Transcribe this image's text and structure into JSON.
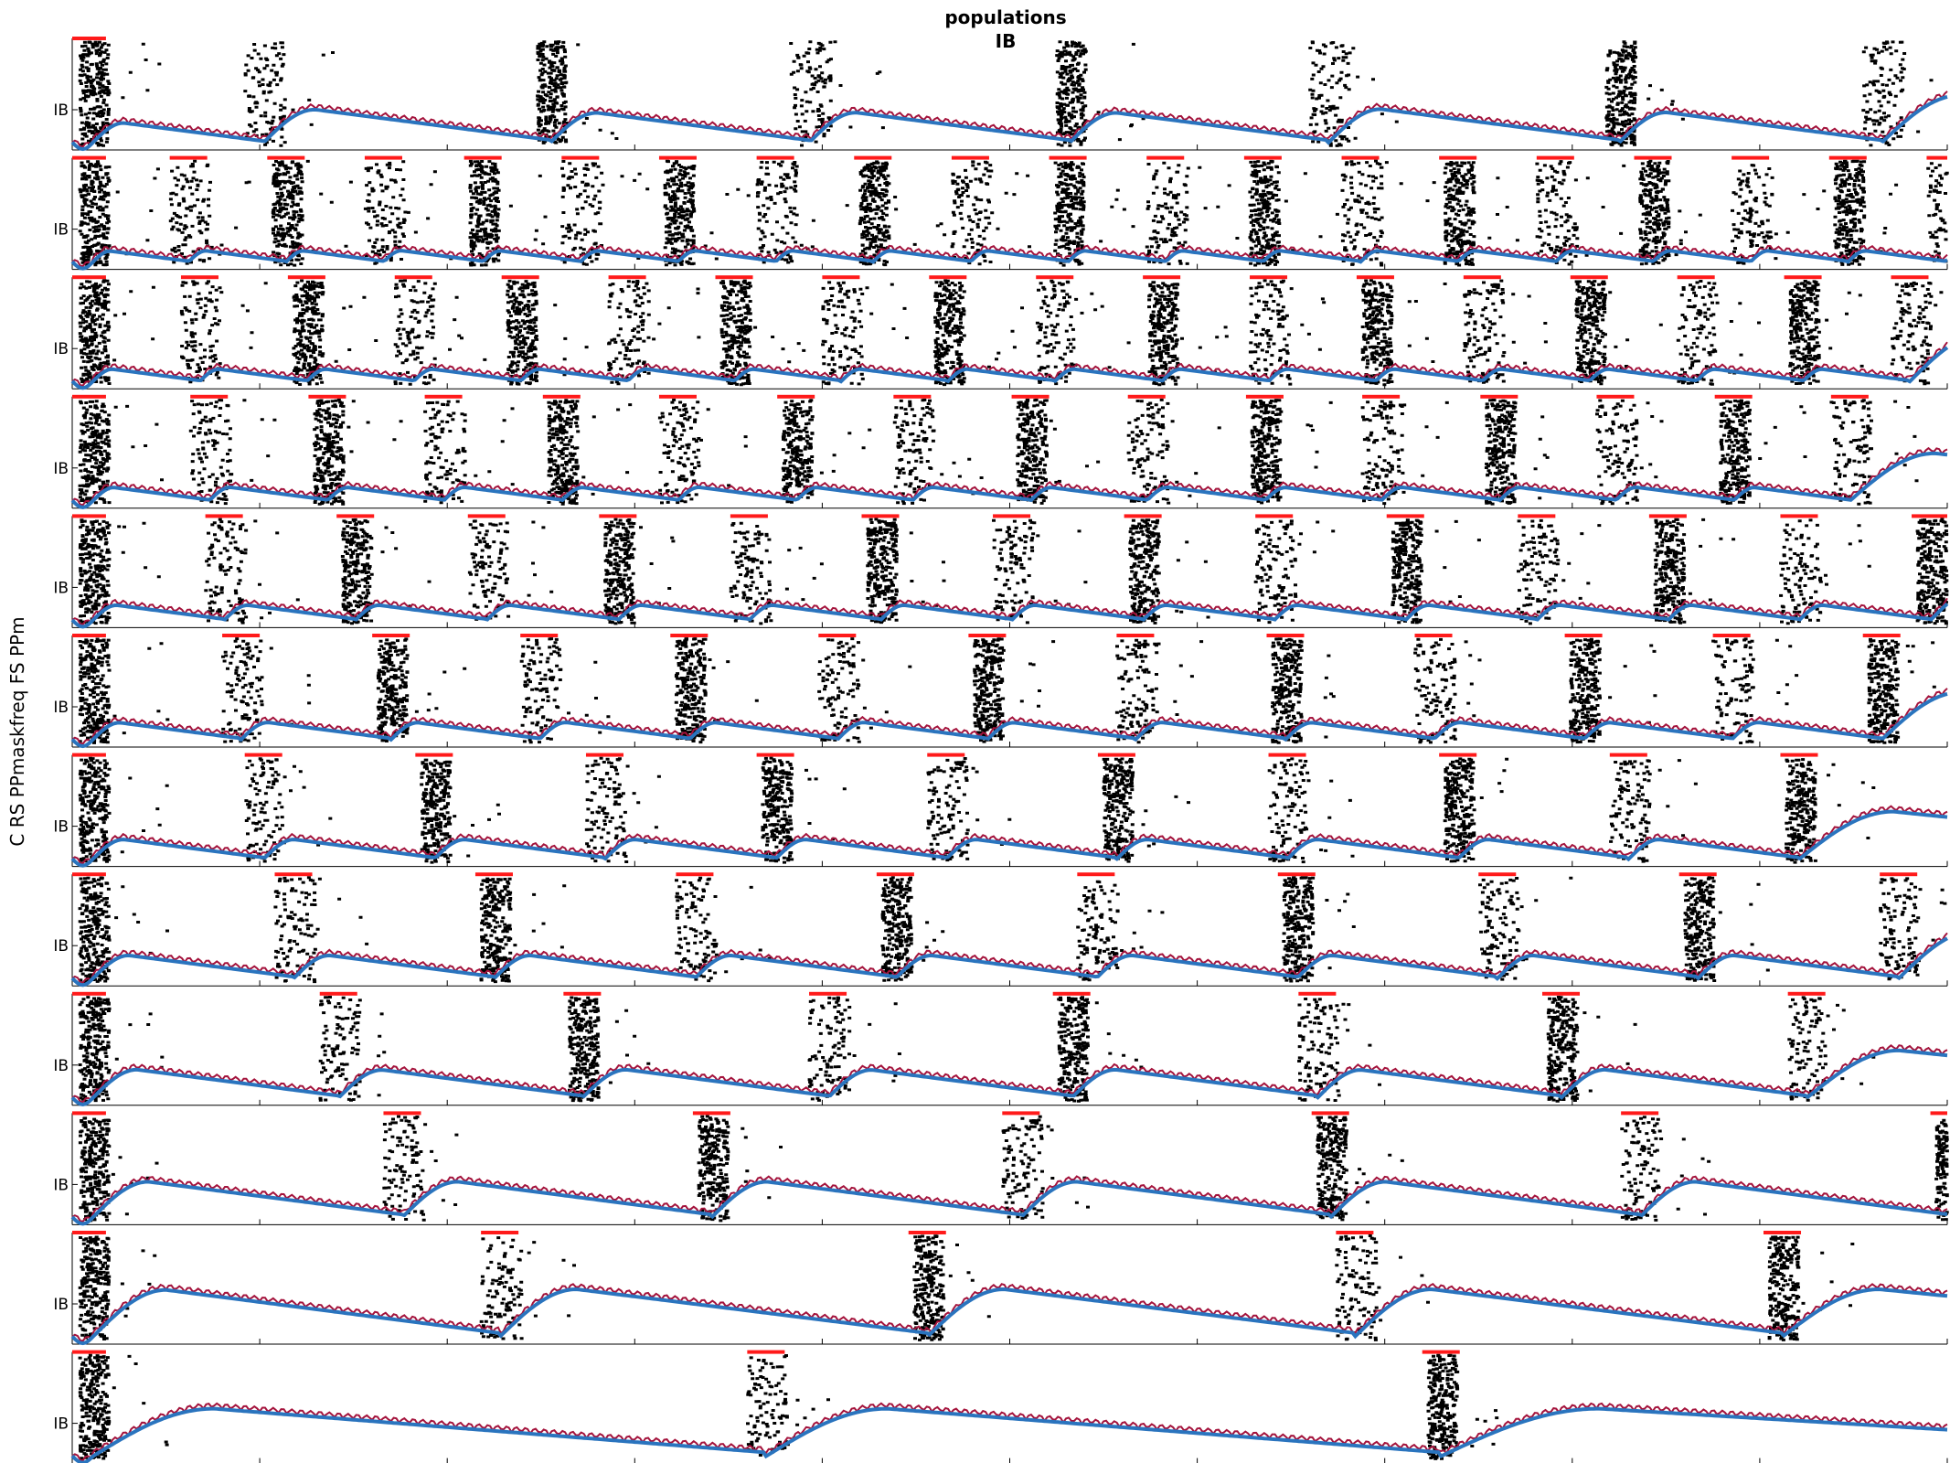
{
  "title_lines": [
    "populations",
    "IB"
  ],
  "side_label": "C RS PPmaskfreq FS PPm",
  "colors": {
    "lfp": "#2a74be",
    "spikes_envelope": "#a4133c",
    "raster": "#000000",
    "mask": "#ff1a1a",
    "axis": "#000000"
  },
  "chart_data": {
    "type": "line",
    "title": "populations IB",
    "panel_label": "IB",
    "x_ticks_per_panel": 10,
    "grid": false,
    "legend": "none",
    "panels": [
      {
        "name": "panel-1",
        "ylabel": "IB",
        "burst_centers": [
          0.011,
          0.102,
          0.255,
          0.393,
          0.532,
          0.67,
          0.825,
          0.965
        ],
        "mask_windows": [
          [
            0.0,
            0.018
          ]
        ]
      },
      {
        "name": "panel-2",
        "ylabel": "IB",
        "burst_centers": [
          0.011,
          0.062,
          0.114,
          0.166,
          0.219,
          0.271,
          0.323,
          0.375,
          0.427,
          0.479,
          0.531,
          0.583,
          0.635,
          0.687,
          0.739,
          0.791,
          0.843,
          0.895,
          0.947,
          0.999
        ],
        "mask_windows": [
          [
            0.0,
            0.018
          ],
          [
            0.052,
            0.072
          ],
          [
            0.104,
            0.124
          ],
          [
            0.156,
            0.176
          ],
          [
            0.209,
            0.229
          ],
          [
            0.261,
            0.281
          ],
          [
            0.313,
            0.333
          ],
          [
            0.365,
            0.385
          ],
          [
            0.417,
            0.437
          ],
          [
            0.469,
            0.489
          ],
          [
            0.521,
            0.541
          ],
          [
            0.573,
            0.593
          ],
          [
            0.625,
            0.645
          ],
          [
            0.677,
            0.697
          ],
          [
            0.729,
            0.749
          ],
          [
            0.781,
            0.801
          ],
          [
            0.833,
            0.853
          ],
          [
            0.885,
            0.905
          ],
          [
            0.937,
            0.957
          ],
          [
            0.989,
            1.0
          ]
        ]
      },
      {
        "name": "panel-3",
        "ylabel": "IB",
        "burst_centers": [
          0.011,
          0.068,
          0.125,
          0.182,
          0.239,
          0.296,
          0.353,
          0.41,
          0.467,
          0.524,
          0.581,
          0.638,
          0.695,
          0.752,
          0.809,
          0.866,
          0.923,
          0.98
        ],
        "mask_windows": [
          [
            0.0,
            0.018
          ],
          [
            0.058,
            0.078
          ],
          [
            0.115,
            0.135
          ],
          [
            0.172,
            0.192
          ],
          [
            0.229,
            0.249
          ],
          [
            0.286,
            0.306
          ],
          [
            0.343,
            0.363
          ],
          [
            0.4,
            0.42
          ],
          [
            0.457,
            0.477
          ],
          [
            0.514,
            0.534
          ],
          [
            0.571,
            0.591
          ],
          [
            0.628,
            0.648
          ],
          [
            0.685,
            0.705
          ],
          [
            0.742,
            0.762
          ],
          [
            0.799,
            0.819
          ],
          [
            0.856,
            0.876
          ],
          [
            0.913,
            0.933
          ],
          [
            0.97,
            0.99
          ]
        ]
      },
      {
        "name": "panel-4",
        "ylabel": "IB",
        "burst_centers": [
          0.011,
          0.073,
          0.136,
          0.198,
          0.261,
          0.323,
          0.386,
          0.448,
          0.511,
          0.573,
          0.636,
          0.698,
          0.761,
          0.823,
          0.886,
          0.948
        ],
        "mask_windows": [
          [
            0.0,
            0.018
          ],
          [
            0.063,
            0.083
          ],
          [
            0.126,
            0.146
          ],
          [
            0.188,
            0.208
          ],
          [
            0.251,
            0.271
          ],
          [
            0.313,
            0.333
          ],
          [
            0.376,
            0.396
          ],
          [
            0.438,
            0.458
          ],
          [
            0.501,
            0.521
          ],
          [
            0.563,
            0.583
          ],
          [
            0.626,
            0.646
          ],
          [
            0.688,
            0.708
          ],
          [
            0.751,
            0.771
          ],
          [
            0.813,
            0.833
          ],
          [
            0.876,
            0.896
          ],
          [
            0.938,
            0.958
          ]
        ]
      },
      {
        "name": "panel-5",
        "ylabel": "IB",
        "burst_centers": [
          0.011,
          0.081,
          0.151,
          0.221,
          0.291,
          0.361,
          0.431,
          0.501,
          0.571,
          0.641,
          0.711,
          0.781,
          0.851,
          0.921,
          0.991
        ],
        "mask_windows": [
          [
            0.0,
            0.018
          ],
          [
            0.071,
            0.091
          ],
          [
            0.141,
            0.161
          ],
          [
            0.211,
            0.231
          ],
          [
            0.281,
            0.301
          ],
          [
            0.351,
            0.371
          ],
          [
            0.421,
            0.441
          ],
          [
            0.491,
            0.511
          ],
          [
            0.561,
            0.581
          ],
          [
            0.631,
            0.651
          ],
          [
            0.701,
            0.721
          ],
          [
            0.771,
            0.791
          ],
          [
            0.841,
            0.861
          ],
          [
            0.911,
            0.931
          ],
          [
            0.981,
            1.0
          ]
        ]
      },
      {
        "name": "panel-6",
        "ylabel": "IB",
        "burst_centers": [
          0.011,
          0.09,
          0.17,
          0.249,
          0.329,
          0.408,
          0.488,
          0.567,
          0.647,
          0.726,
          0.806,
          0.885,
          0.965
        ],
        "mask_windows": [
          [
            0.0,
            0.018
          ],
          [
            0.08,
            0.1
          ],
          [
            0.16,
            0.18
          ],
          [
            0.239,
            0.259
          ],
          [
            0.319,
            0.339
          ],
          [
            0.398,
            0.418
          ],
          [
            0.478,
            0.498
          ],
          [
            0.557,
            0.577
          ],
          [
            0.637,
            0.657
          ],
          [
            0.716,
            0.736
          ],
          [
            0.796,
            0.816
          ],
          [
            0.875,
            0.895
          ],
          [
            0.955,
            0.975
          ]
        ]
      },
      {
        "name": "panel-7",
        "ylabel": "IB",
        "burst_centers": [
          0.011,
          0.102,
          0.193,
          0.284,
          0.375,
          0.466,
          0.557,
          0.648,
          0.739,
          0.83,
          0.921
        ],
        "mask_windows": [
          [
            0.0,
            0.018
          ],
          [
            0.092,
            0.112
          ],
          [
            0.183,
            0.203
          ],
          [
            0.274,
            0.294
          ],
          [
            0.365,
            0.385
          ],
          [
            0.456,
            0.476
          ],
          [
            0.547,
            0.567
          ],
          [
            0.638,
            0.658
          ],
          [
            0.729,
            0.749
          ],
          [
            0.82,
            0.84
          ],
          [
            0.911,
            0.931
          ]
        ]
      },
      {
        "name": "panel-8",
        "ylabel": "IB",
        "burst_centers": [
          0.011,
          0.118,
          0.225,
          0.332,
          0.439,
          0.546,
          0.653,
          0.76,
          0.867,
          0.974
        ],
        "mask_windows": [
          [
            0.0,
            0.018
          ],
          [
            0.108,
            0.128
          ],
          [
            0.215,
            0.235
          ],
          [
            0.322,
            0.342
          ],
          [
            0.429,
            0.449
          ],
          [
            0.536,
            0.556
          ],
          [
            0.643,
            0.663
          ],
          [
            0.75,
            0.77
          ],
          [
            0.857,
            0.877
          ],
          [
            0.964,
            0.984
          ]
        ]
      },
      {
        "name": "panel-9",
        "ylabel": "IB",
        "burst_centers": [
          0.011,
          0.142,
          0.272,
          0.403,
          0.533,
          0.664,
          0.794,
          0.925
        ],
        "mask_windows": [
          [
            0.0,
            0.018
          ],
          [
            0.132,
            0.152
          ],
          [
            0.262,
            0.282
          ],
          [
            0.393,
            0.413
          ],
          [
            0.523,
            0.543
          ],
          [
            0.654,
            0.674
          ],
          [
            0.784,
            0.804
          ],
          [
            0.915,
            0.935
          ]
        ]
      },
      {
        "name": "panel-10",
        "ylabel": "IB",
        "burst_centers": [
          0.011,
          0.176,
          0.341,
          0.506,
          0.671,
          0.836,
          1.001
        ],
        "mask_windows": [
          [
            0.0,
            0.018
          ],
          [
            0.166,
            0.186
          ],
          [
            0.331,
            0.351
          ],
          [
            0.496,
            0.516
          ],
          [
            0.661,
            0.681
          ],
          [
            0.826,
            0.846
          ],
          [
            0.991,
            1.0
          ]
        ]
      },
      {
        "name": "panel-11",
        "ylabel": "IB",
        "burst_centers": [
          0.011,
          0.228,
          0.456,
          0.684,
          0.912
        ],
        "mask_windows": [
          [
            0.0,
            0.018
          ],
          [
            0.218,
            0.238
          ],
          [
            0.446,
            0.466
          ],
          [
            0.674,
            0.694
          ],
          [
            0.902,
            0.922
          ]
        ]
      },
      {
        "name": "panel-12",
        "ylabel": "IB",
        "burst_centers": [
          0.011,
          0.37,
          0.73
        ],
        "mask_windows": [
          [
            0.0,
            0.018
          ],
          [
            0.36,
            0.38
          ],
          [
            0.72,
            0.74
          ]
        ]
      }
    ]
  }
}
